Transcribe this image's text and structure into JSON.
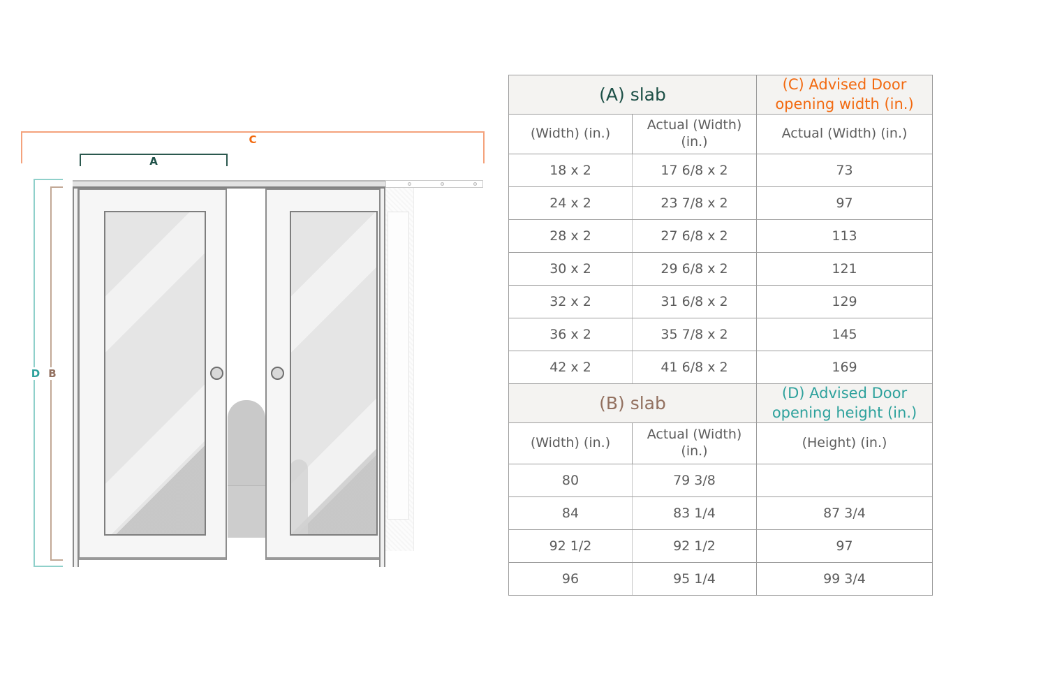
{
  "diagram": {
    "dimension_labels": {
      "a": "A",
      "b": "B",
      "c": "C",
      "d": "D"
    },
    "colors": {
      "label_a": "#1d5047",
      "label_b": "#92705f",
      "label_c": "#f2690f",
      "label_d": "#2da19c",
      "line_a": "#2b584e",
      "line_b": "#c2a896",
      "line_c": "#f4a27c",
      "line_d": "#8fd0ca"
    }
  },
  "table": {
    "sections": [
      {
        "slab_header": "(A) slab",
        "advised_header": "(C) Advised Door opening width (in.)",
        "subheaders": [
          "(Width) (in.)",
          "Actual (Width) (in.)",
          "Actual (Width) (in.)"
        ],
        "rows": [
          [
            "18 x 2",
            "17 6/8 x 2",
            "73"
          ],
          [
            "24 x 2",
            "23 7/8 x 2",
            "97"
          ],
          [
            "28 x 2",
            "27 6/8 x 2",
            "113"
          ],
          [
            "30 x 2",
            "29 6/8 x 2",
            "121"
          ],
          [
            "32 x 2",
            "31 6/8 x 2",
            "129"
          ],
          [
            "36 x 2",
            "35 7/8 x 2",
            "145"
          ],
          [
            "42 x 2",
            "41 6/8 x 2",
            "169"
          ]
        ]
      },
      {
        "slab_header": "(B) slab",
        "advised_header": "(D) Advised Door opening height (in.)",
        "subheaders": [
          "(Width) (in.)",
          "Actual (Width) (in.)",
          "(Height) (in.)"
        ],
        "rows": [
          [
            "80",
            "79 3/8",
            ""
          ],
          [
            "84",
            "83 1/4",
            "87 3/4"
          ],
          [
            "92 1/2",
            "92 1/2",
            "97"
          ],
          [
            "96",
            "95 1/4",
            "99 3/4"
          ]
        ]
      }
    ]
  }
}
